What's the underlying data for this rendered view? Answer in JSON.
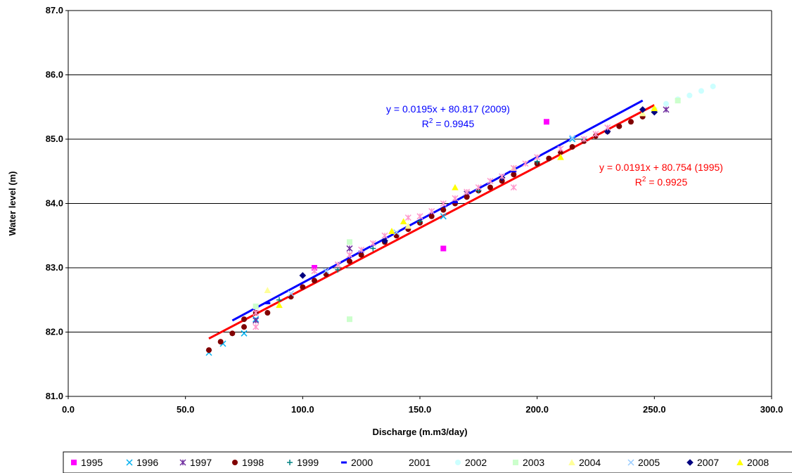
{
  "chart_data": {
    "type": "scatter",
    "xlabel": "Discharge (m.m3/day)",
    "ylabel": "Water level (m)",
    "xlim": [
      0,
      300
    ],
    "ylim": [
      81,
      87
    ],
    "x_ticks": [
      "0.0",
      "50.0",
      "100.0",
      "150.0",
      "200.0",
      "250.0",
      "300.0"
    ],
    "y_ticks": [
      "81.0",
      "82.0",
      "83.0",
      "84.0",
      "85.0",
      "86.0",
      "87.0"
    ],
    "grid": "horizontal",
    "legend_position": "bottom",
    "series": [
      {
        "name": "1995",
        "marker": "square",
        "color": "#ff00ff",
        "points": [
          [
            105,
            83.0
          ],
          [
            160,
            83.3
          ],
          [
            204,
            85.27
          ]
        ]
      },
      {
        "name": "1996",
        "marker": "x",
        "color": "#00b0f0",
        "points": [
          [
            60,
            81.68
          ],
          [
            66,
            81.82
          ],
          [
            75,
            81.98
          ],
          [
            80,
            82.2
          ],
          [
            160,
            83.8
          ],
          [
            215,
            85.0
          ]
        ]
      },
      {
        "name": "1997",
        "marker": "star",
        "color": "#7030a0",
        "points": [
          [
            80,
            82.18
          ],
          [
            120,
            83.3
          ],
          [
            170,
            84.15
          ],
          [
            255,
            85.46
          ]
        ]
      },
      {
        "name": "1998",
        "marker": "circle",
        "color": "#800000",
        "points": [
          [
            60,
            81.72
          ],
          [
            65,
            81.85
          ],
          [
            70,
            81.98
          ],
          [
            75,
            82.08
          ],
          [
            75,
            82.2
          ],
          [
            80,
            82.3
          ],
          [
            85,
            82.3
          ],
          [
            95,
            82.55
          ],
          [
            100,
            82.7
          ],
          [
            105,
            82.8
          ],
          [
            110,
            82.9
          ],
          [
            120,
            83.1
          ],
          [
            125,
            83.2
          ],
          [
            135,
            83.4
          ],
          [
            140,
            83.5
          ],
          [
            145,
            83.6
          ],
          [
            150,
            83.7
          ],
          [
            155,
            83.8
          ],
          [
            160,
            83.9
          ],
          [
            165,
            84.0
          ],
          [
            170,
            84.1
          ],
          [
            175,
            84.2
          ],
          [
            180,
            84.25
          ],
          [
            185,
            84.35
          ],
          [
            190,
            84.45
          ],
          [
            200,
            84.62
          ],
          [
            205,
            84.7
          ],
          [
            210,
            84.8
          ],
          [
            215,
            84.88
          ],
          [
            220,
            84.97
          ],
          [
            225,
            85.05
          ],
          [
            230,
            85.12
          ],
          [
            235,
            85.2
          ],
          [
            240,
            85.27
          ],
          [
            245,
            85.35
          ]
        ]
      },
      {
        "name": "1999",
        "marker": "plus",
        "color": "#008080",
        "points": [
          [
            90,
            82.5
          ],
          [
            115,
            82.97
          ],
          [
            130,
            83.3
          ],
          [
            150,
            83.72
          ],
          [
            175,
            84.2
          ],
          [
            200,
            84.65
          ],
          [
            220,
            85.0
          ]
        ]
      },
      {
        "name": "2000",
        "marker": "dash",
        "color": "#0000ff",
        "points": [
          [
            85,
            82.45
          ],
          [
            125,
            83.25
          ],
          [
            165,
            84.02
          ],
          [
            190,
            84.5
          ]
        ]
      },
      {
        "name": "2001",
        "marker": "none",
        "color": "#ffffff",
        "points": []
      },
      {
        "name": "2002",
        "marker": "circle",
        "color": "#ccffff",
        "points": [
          [
            255,
            85.55
          ],
          [
            260,
            85.62
          ],
          [
            265,
            85.68
          ],
          [
            270,
            85.75
          ],
          [
            275,
            85.82
          ]
        ]
      },
      {
        "name": "2003",
        "marker": "square",
        "color": "#ccffcc",
        "points": [
          [
            120,
            82.2
          ],
          [
            120,
            83.4
          ],
          [
            80,
            82.4
          ],
          [
            250,
            85.45
          ],
          [
            260,
            85.6
          ]
        ]
      },
      {
        "name": "2004",
        "marker": "triangle",
        "color": "#ffff99",
        "points": [
          [
            85,
            82.65
          ],
          [
            145,
            83.65
          ],
          [
            190,
            84.55
          ],
          [
            245,
            85.4
          ]
        ]
      },
      {
        "name": "2005",
        "marker": "x",
        "color": "#99ccff",
        "points": [
          [
            95,
            82.6
          ],
          [
            110,
            82.95
          ],
          [
            140,
            83.55
          ],
          [
            185,
            84.42
          ],
          [
            215,
            85.02
          ]
        ]
      },
      {
        "name": "2007",
        "marker": "diamond",
        "color": "#000080",
        "points": [
          [
            100,
            82.88
          ],
          [
            135,
            83.42
          ],
          [
            185,
            84.4
          ],
          [
            230,
            85.12
          ],
          [
            245,
            85.46
          ],
          [
            250,
            85.42
          ]
        ]
      },
      {
        "name": "2008",
        "marker": "triangle",
        "color": "#ffff00",
        "points": [
          [
            90,
            82.42
          ],
          [
            138,
            83.57
          ],
          [
            143,
            83.72
          ],
          [
            165,
            84.25
          ],
          [
            210,
            84.72
          ],
          [
            250,
            85.48
          ]
        ]
      },
      {
        "name": "2009",
        "marker": "star",
        "color": "#ff99cc",
        "points": [
          [
            80,
            82.08
          ],
          [
            80,
            82.3
          ],
          [
            105,
            82.95
          ],
          [
            115,
            83.05
          ],
          [
            120,
            83.2
          ],
          [
            125,
            83.28
          ],
          [
            130,
            83.38
          ],
          [
            135,
            83.5
          ],
          [
            145,
            83.78
          ],
          [
            150,
            83.8
          ],
          [
            155,
            83.88
          ],
          [
            160,
            84.0
          ],
          [
            165,
            84.08
          ],
          [
            170,
            84.18
          ],
          [
            175,
            84.25
          ],
          [
            180,
            84.35
          ],
          [
            185,
            84.42
          ],
          [
            190,
            84.25
          ],
          [
            190,
            84.55
          ],
          [
            195,
            84.62
          ],
          [
            200,
            84.72
          ],
          [
            210,
            84.85
          ],
          [
            220,
            85.0
          ],
          [
            225,
            85.08
          ],
          [
            230,
            85.18
          ]
        ]
      }
    ],
    "trendlines": [
      {
        "x": [
          70,
          245
        ],
        "y": [
          82.18,
          85.6
        ],
        "color": "#0000ff"
      },
      {
        "x": [
          60,
          250
        ],
        "y": [
          81.9,
          85.53
        ],
        "color": "#ff0000"
      }
    ],
    "annotations": [
      {
        "line1": "y = 0.0195x + 80.817 (2009)",
        "r2_prefix": "R",
        "r2_sup": "2",
        "r2_value": " = 0.9945",
        "color": "#0000ff"
      },
      {
        "line1": "y = 0.0191x + 80.754 (1995)",
        "r2_prefix": "R",
        "r2_sup": "2",
        "r2_value": " = 0.9925",
        "color": "#ff0000"
      }
    ]
  }
}
